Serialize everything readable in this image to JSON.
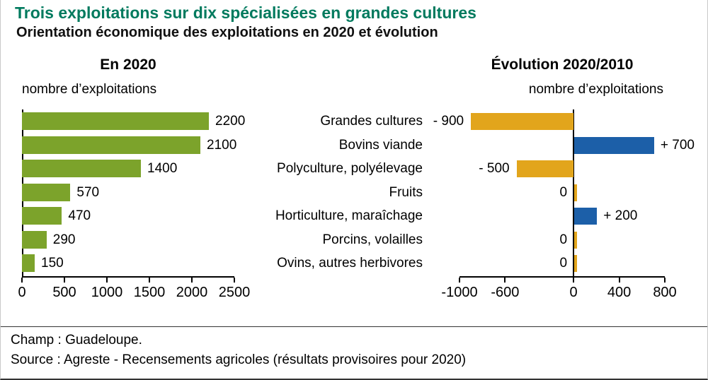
{
  "header": {
    "title": "Trois exploitations sur dix spécialisées en grandes cultures",
    "subtitle": "Orientation économique des exploitations en 2020 et évolution"
  },
  "footer": {
    "champ": "Champ : Guadeloupe.",
    "source": "Source : Agreste - Recensements agricoles (résultats provisoires pour 2020)"
  },
  "colors": {
    "title_green": "#007a5e",
    "bar_green": "#7ca32b",
    "bar_orange": "#e2a51c",
    "bar_blue": "#1c5fa8"
  },
  "chart_data": [
    {
      "type": "bar",
      "orientation": "horizontal",
      "title": "En 2020",
      "axis_label": "nombre d’exploitations",
      "categories": [
        "Grandes cultures",
        "Bovins viande",
        "Polyculture, polyélevage",
        "Fruits",
        "Horticulture, maraîchage",
        "Porcins, volailles",
        "Ovins, autres herbivores"
      ],
      "values": [
        2200,
        2100,
        1400,
        570,
        470,
        290,
        150
      ],
      "value_labels": [
        "2200",
        "2100",
        "1400",
        "570",
        "470",
        "290",
        "150"
      ],
      "xlim": [
        0,
        2500
      ],
      "xticks": [
        0,
        500,
        1000,
        1500,
        2000,
        2500
      ],
      "bar_color": "#7ca32b",
      "grid": false,
      "legend": false
    },
    {
      "type": "bar",
      "orientation": "horizontal",
      "title": "Évolution 2020/2010",
      "axis_label": "nombre d’exploitations",
      "categories": [
        "Grandes cultures",
        "Bovins viande",
        "Polyculture, polyélevage",
        "Fruits",
        "Horticulture, maraîchage",
        "Porcins, volailles",
        "Ovins, autres herbivores"
      ],
      "values": [
        -900,
        700,
        -500,
        0,
        200,
        0,
        0
      ],
      "value_labels": [
        "- 900",
        "+ 700",
        "- 500",
        "0",
        "+ 200",
        "0",
        "0"
      ],
      "xlim": [
        -1000,
        800
      ],
      "xticks": [
        -1000,
        -600,
        0,
        400,
        800
      ],
      "positive_color": "#1c5fa8",
      "negative_color": "#e2a51c",
      "grid": false,
      "legend": false
    }
  ]
}
